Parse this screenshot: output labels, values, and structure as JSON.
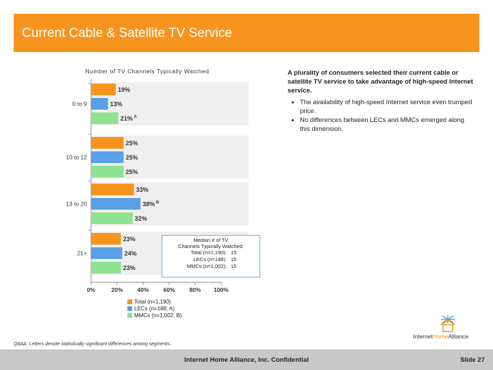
{
  "header": {
    "title": "Current Cable & Satellite TV Service"
  },
  "chart_data": {
    "type": "bar",
    "orientation": "horizontal",
    "title": "Number of TV Channels Typically Watched",
    "categories": [
      "0 to 9",
      "10 to 12",
      "13 to 20",
      "21+"
    ],
    "series": [
      {
        "name": "Total (n=1,190)",
        "color": "#f7941d",
        "values": [
          19,
          25,
          33,
          23
        ],
        "labels": [
          "19%",
          "25%",
          "33%",
          "23%"
        ]
      },
      {
        "name": "LECs (n=188; A)",
        "color": "#5aa0e6",
        "values": [
          13,
          25,
          38,
          24
        ],
        "labels": [
          "13%",
          "25%",
          "38%",
          "24%"
        ]
      },
      {
        "name": "MMCs (n=1,002; B)",
        "color": "#8fe28f",
        "values": [
          21,
          25,
          32,
          23
        ],
        "labels": [
          "21%",
          "25%",
          "32%",
          "23%"
        ]
      }
    ],
    "significance": [
      {
        "category": "0 to 9",
        "series": "MMCs (n=1,002; B)",
        "letter": "A"
      },
      {
        "category": "13 to 20",
        "series": "LECs (n=188; A)",
        "letter": "B"
      }
    ],
    "x_ticks": [
      "0%",
      "20%",
      "40%",
      "60%",
      "80%",
      "100%"
    ],
    "xlim": [
      0,
      100
    ]
  },
  "median_box": {
    "heading_line1": "Median # of TV",
    "heading_line2": "Channels Typically Watched:",
    "rows": [
      {
        "label": "Total (n=1,190):",
        "value": "15"
      },
      {
        "label": "LECs (n=188):",
        "value": "15"
      },
      {
        "label": "MMCs (n=1,002):",
        "value": "15"
      }
    ]
  },
  "commentary": {
    "headline": "A plurality of consumers selected their current cable or satellite TV service to take advantage of high-speed Internet service.",
    "bullets": [
      "The availability of high-speed Internet service even trumped price.",
      "No differences between LECs and MMCs emerged along this dimension."
    ]
  },
  "footnote": "Q8AA; Letters denote statistically significant differences among segments.",
  "logo": {
    "part1": "Internet",
    "part2": "Home",
    "part3": "Alliance"
  },
  "footer": {
    "confidential": "Internet Home Alliance, Inc. Confidential",
    "slide": "Slide 27"
  }
}
